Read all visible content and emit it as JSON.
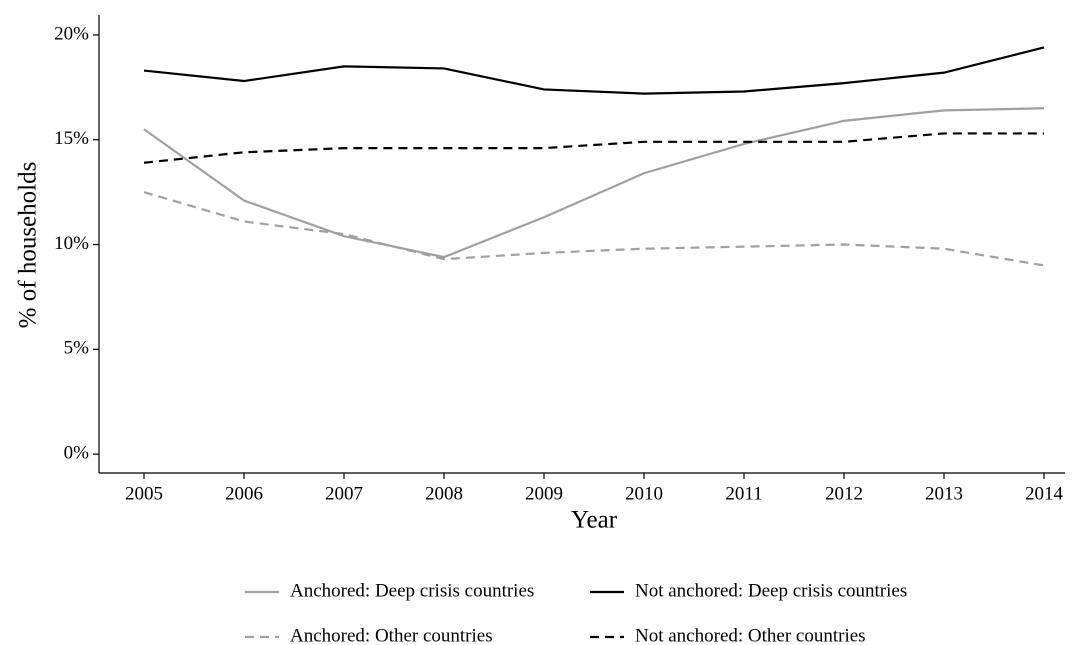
{
  "chart_data": {
    "type": "line",
    "x_label": "Year",
    "y_label": "% of households",
    "x": [
      2005,
      2006,
      2007,
      2008,
      2009,
      2010,
      2011,
      2012,
      2013,
      2014
    ],
    "xlim": [
      2004.55,
      2014.21
    ],
    "xticks": [
      2005,
      2006,
      2007,
      2008,
      2009,
      2010,
      2011,
      2012,
      2013,
      2014
    ],
    "ylim": [
      -0.9,
      20.95
    ],
    "yticks": [
      {
        "value": 0,
        "label": "0%"
      },
      {
        "value": 5,
        "label": "5%"
      },
      {
        "value": 10,
        "label": "10%"
      },
      {
        "value": 15,
        "label": "15%"
      },
      {
        "value": 20,
        "label": "20%"
      }
    ],
    "grid": false,
    "legend": "bottom",
    "series": [
      {
        "name": "Anchored: Deep crisis countries",
        "color": "#a0a0a0",
        "linestyle": "solid",
        "values": [
          15.5,
          12.1,
          10.4,
          9.4,
          11.3,
          13.4,
          14.8,
          15.9,
          16.4,
          16.5
        ]
      },
      {
        "name": "Not anchored: Deep crisis countries",
        "color": "#000000",
        "linestyle": "solid",
        "values": [
          18.3,
          17.8,
          18.5,
          18.4,
          17.4,
          17.2,
          17.3,
          17.7,
          18.2,
          19.4
        ]
      },
      {
        "name": "Anchored: Other countries",
        "color": "#a0a0a0",
        "linestyle": "dashed",
        "values": [
          12.5,
          11.1,
          10.5,
          9.3,
          9.6,
          9.8,
          9.9,
          10.0,
          9.8,
          9.0
        ]
      },
      {
        "name": "Not anchored: Other countries",
        "color": "#000000",
        "linestyle": "dashed",
        "values": [
          13.9,
          14.4,
          14.6,
          14.6,
          14.6,
          14.9,
          14.9,
          14.9,
          15.3,
          15.3
        ]
      }
    ]
  }
}
